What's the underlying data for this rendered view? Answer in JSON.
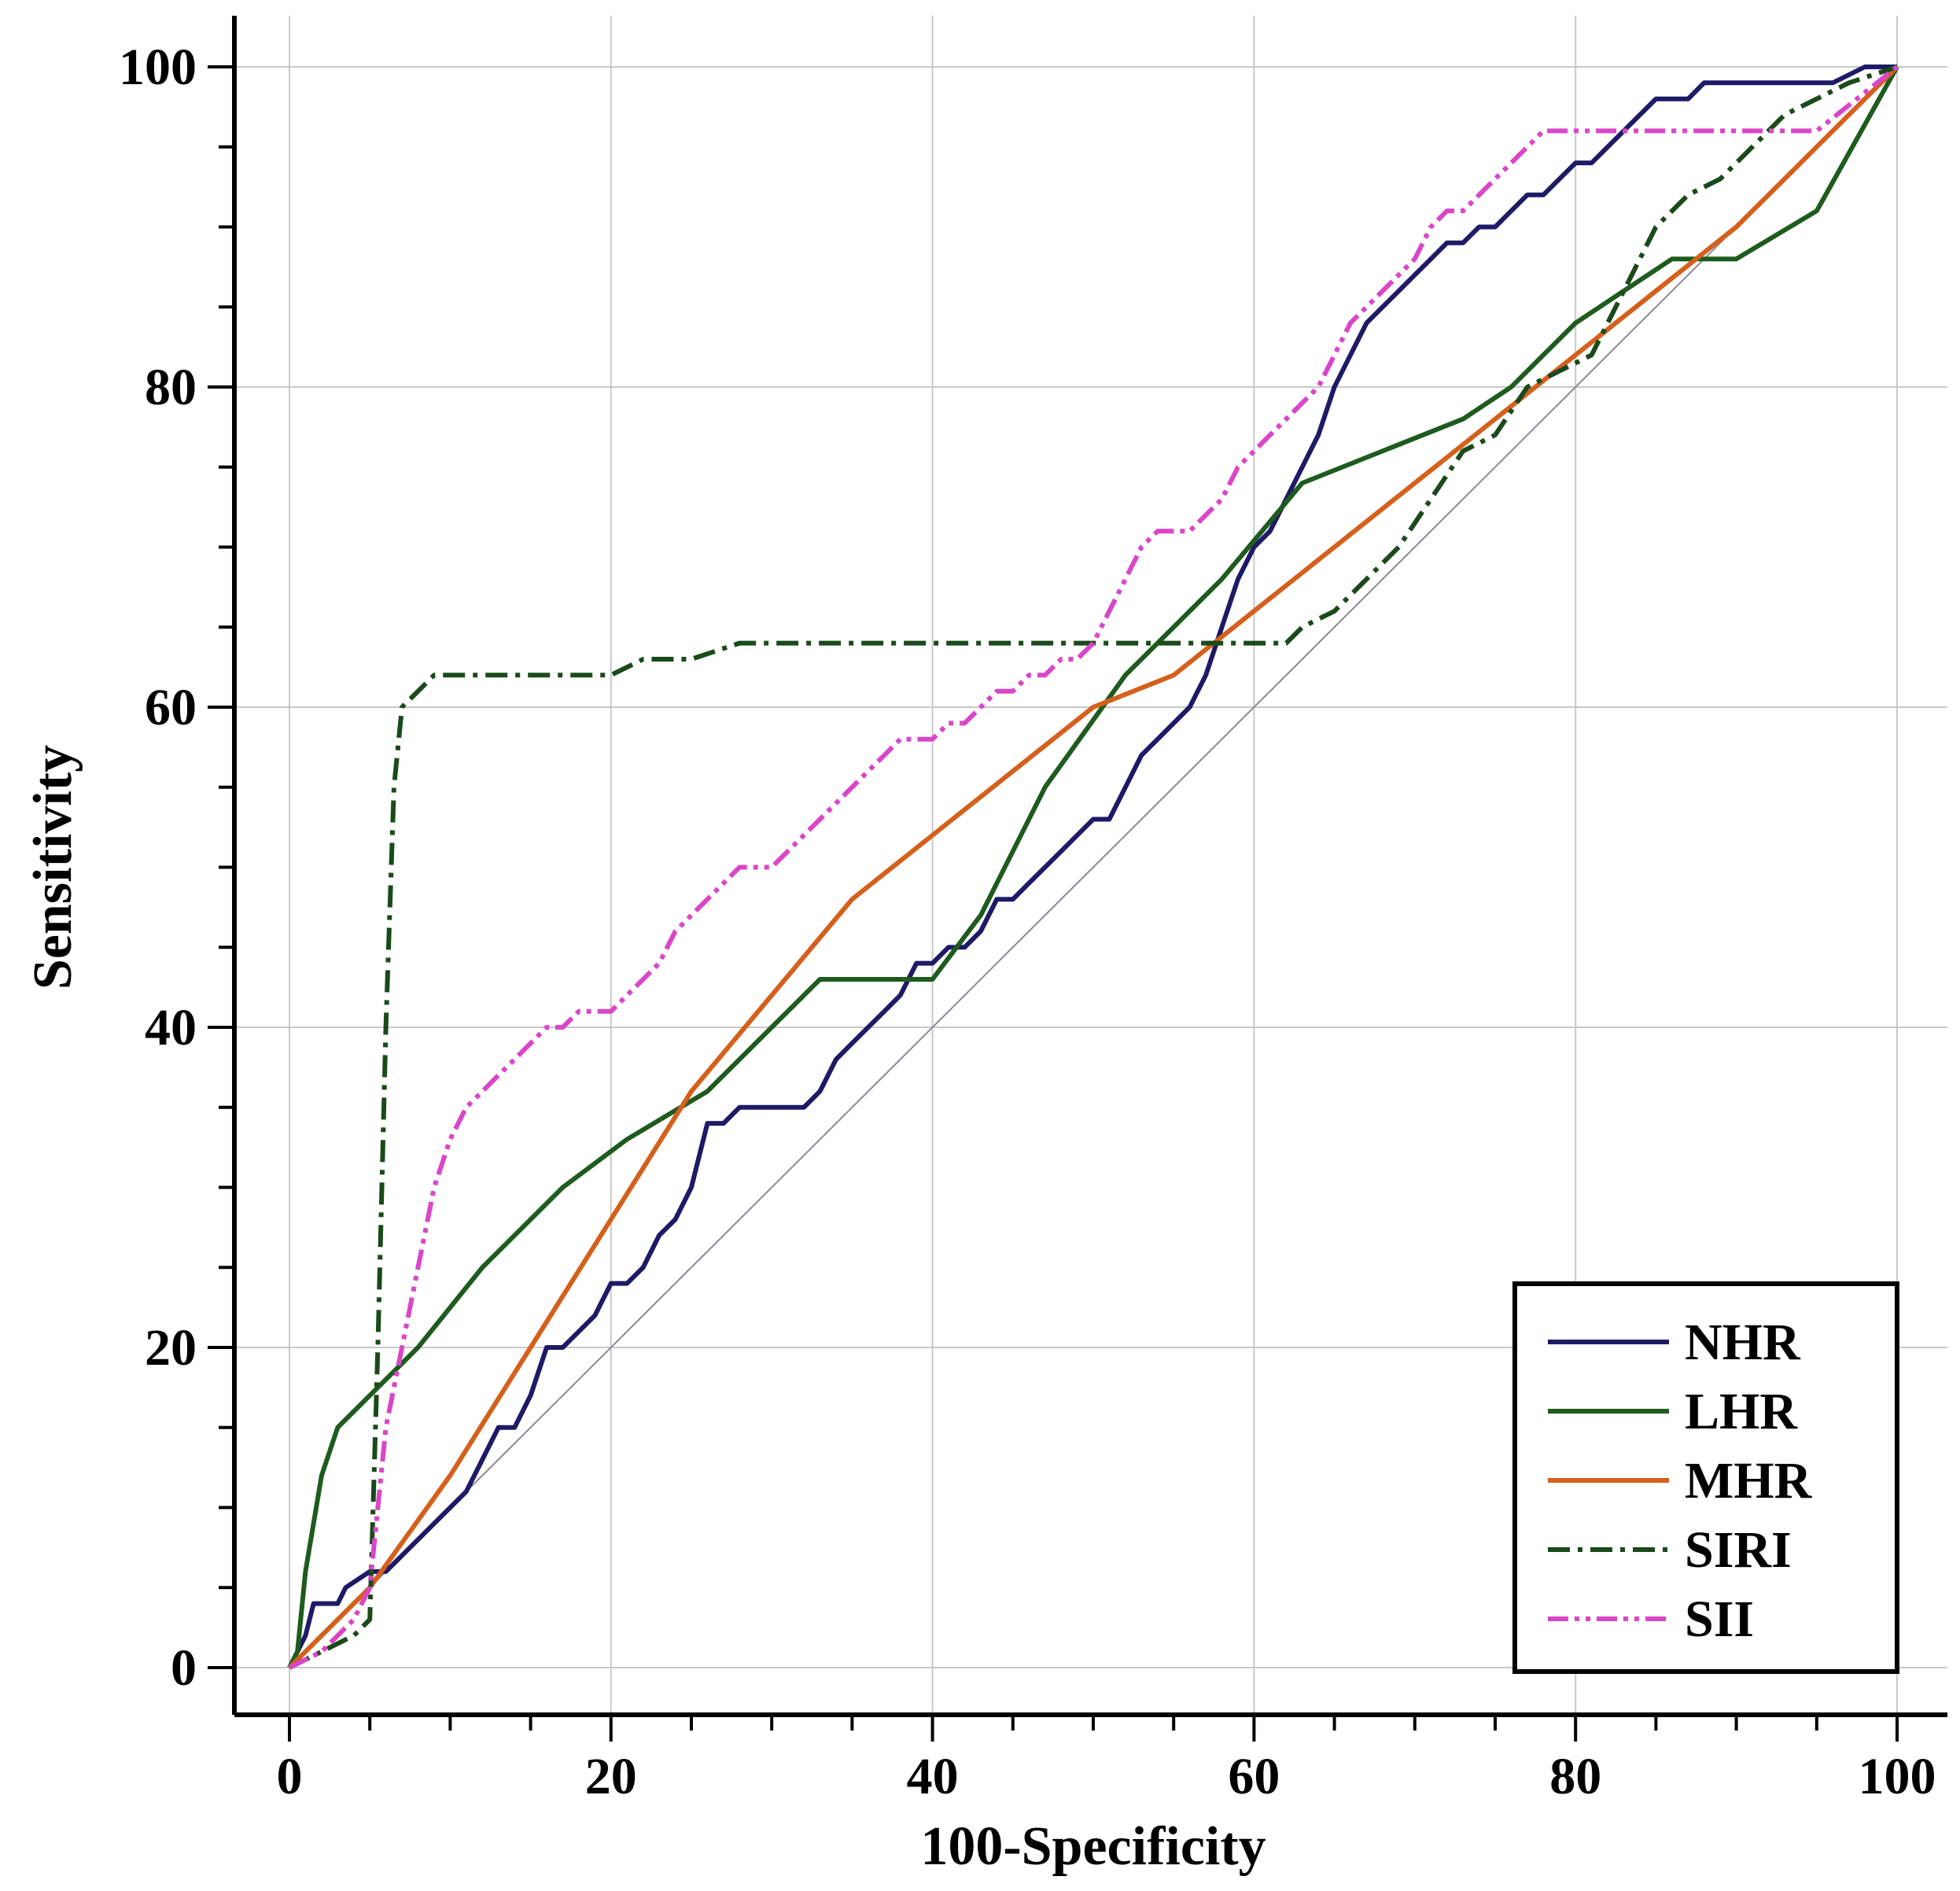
{
  "chart_data": {
    "type": "line",
    "title": "",
    "xlabel": "100-Specificity",
    "ylabel": "Sensitivity",
    "xlim": [
      0,
      100
    ],
    "ylim": [
      0,
      100
    ],
    "x_ticks": [
      "0",
      "20",
      "40",
      "60",
      "80",
      "100"
    ],
    "y_ticks": [
      "0",
      "20",
      "40",
      "60",
      "80",
      "100"
    ],
    "grid": true,
    "legend_position": "bottom-right",
    "reference_line": {
      "x": [
        0,
        100
      ],
      "y": [
        0,
        100
      ],
      "color": "#8a8a9a"
    },
    "series": [
      {
        "name": "NHR",
        "color": "#1f1a66",
        "dash": "solid",
        "points": [
          [
            0,
            0
          ],
          [
            0.5,
            1
          ],
          [
            1,
            2
          ],
          [
            1.5,
            4
          ],
          [
            3,
            4
          ],
          [
            3.5,
            5
          ],
          [
            5,
            6
          ],
          [
            6,
            6
          ],
          [
            7,
            7
          ],
          [
            8,
            8
          ],
          [
            9,
            9
          ],
          [
            10,
            10
          ],
          [
            11,
            11
          ],
          [
            12,
            13
          ],
          [
            13,
            15
          ],
          [
            14,
            15
          ],
          [
            15,
            17
          ],
          [
            16,
            20
          ],
          [
            17,
            20
          ],
          [
            18,
            21
          ],
          [
            19,
            22
          ],
          [
            20,
            24
          ],
          [
            21,
            24
          ],
          [
            22,
            25
          ],
          [
            23,
            27
          ],
          [
            24,
            28
          ],
          [
            25,
            30
          ],
          [
            26,
            34
          ],
          [
            27,
            34
          ],
          [
            28,
            35
          ],
          [
            29,
            35
          ],
          [
            30,
            35
          ],
          [
            31,
            35
          ],
          [
            32,
            35
          ],
          [
            33,
            36
          ],
          [
            34,
            38
          ],
          [
            35,
            39
          ],
          [
            36,
            40
          ],
          [
            37,
            41
          ],
          [
            38,
            42
          ],
          [
            39,
            44
          ],
          [
            40,
            44
          ],
          [
            41,
            45
          ],
          [
            42,
            45
          ],
          [
            43,
            46
          ],
          [
            44,
            48
          ],
          [
            45,
            48
          ],
          [
            46,
            49
          ],
          [
            47,
            50
          ],
          [
            48,
            51
          ],
          [
            49,
            52
          ],
          [
            50,
            53
          ],
          [
            51,
            53
          ],
          [
            52,
            55
          ],
          [
            53,
            57
          ],
          [
            54,
            58
          ],
          [
            55,
            59
          ],
          [
            56,
            60
          ],
          [
            57,
            62
          ],
          [
            58,
            65
          ],
          [
            59,
            68
          ],
          [
            60,
            70
          ],
          [
            61,
            71
          ],
          [
            62,
            73
          ],
          [
            63,
            75
          ],
          [
            64,
            77
          ],
          [
            65,
            80
          ],
          [
            66,
            82
          ],
          [
            67,
            84
          ],
          [
            68,
            85
          ],
          [
            69,
            86
          ],
          [
            70,
            87
          ],
          [
            71,
            88
          ],
          [
            72,
            89
          ],
          [
            73,
            89
          ],
          [
            74,
            90
          ],
          [
            75,
            90
          ],
          [
            76,
            91
          ],
          [
            77,
            92
          ],
          [
            78,
            92
          ],
          [
            79,
            93
          ],
          [
            80,
            94
          ],
          [
            81,
            94
          ],
          [
            82,
            95
          ],
          [
            83,
            96
          ],
          [
            84,
            97
          ],
          [
            85,
            98
          ],
          [
            86,
            98
          ],
          [
            87,
            98
          ],
          [
            88,
            99
          ],
          [
            89,
            99
          ],
          [
            90,
            99
          ],
          [
            92,
            99
          ],
          [
            94,
            99
          ],
          [
            96,
            99
          ],
          [
            98,
            100
          ],
          [
            100,
            100
          ]
        ]
      },
      {
        "name": "LHR",
        "color": "#1e5b1e",
        "dash": "solid",
        "points": [
          [
            0,
            0
          ],
          [
            0.5,
            1
          ],
          [
            1,
            6
          ],
          [
            2,
            12
          ],
          [
            3,
            15
          ],
          [
            5,
            17
          ],
          [
            8,
            20
          ],
          [
            12,
            25
          ],
          [
            17,
            30
          ],
          [
            21,
            33
          ],
          [
            26,
            36
          ],
          [
            29,
            39
          ],
          [
            33,
            43
          ],
          [
            37,
            43
          ],
          [
            40,
            43
          ],
          [
            43,
            47
          ],
          [
            47,
            55
          ],
          [
            52,
            62
          ],
          [
            58,
            68
          ],
          [
            63,
            74
          ],
          [
            68,
            76
          ],
          [
            73,
            78
          ],
          [
            76,
            80
          ],
          [
            78,
            82
          ],
          [
            80,
            84
          ],
          [
            83,
            86
          ],
          [
            86,
            88
          ],
          [
            90,
            88
          ],
          [
            95,
            91
          ],
          [
            100,
            100
          ]
        ]
      },
      {
        "name": "MHR",
        "color": "#d4601c",
        "dash": "solid",
        "points": [
          [
            0,
            0
          ],
          [
            5,
            5
          ],
          [
            10,
            12
          ],
          [
            15,
            20
          ],
          [
            20,
            28
          ],
          [
            25,
            36
          ],
          [
            30,
            42
          ],
          [
            35,
            48
          ],
          [
            40,
            52
          ],
          [
            45,
            56
          ],
          [
            50,
            60
          ],
          [
            55,
            62
          ],
          [
            60,
            66
          ],
          [
            65,
            70
          ],
          [
            70,
            74
          ],
          [
            75,
            78
          ],
          [
            80,
            82
          ],
          [
            85,
            86
          ],
          [
            90,
            90
          ],
          [
            95,
            95
          ],
          [
            100,
            100
          ]
        ]
      },
      {
        "name": "SIRI",
        "color": "#1a4a1a",
        "dash": "dashdot",
        "points": [
          [
            0,
            0
          ],
          [
            2,
            1
          ],
          [
            4,
            2
          ],
          [
            5,
            3
          ],
          [
            5.5,
            20
          ],
          [
            6,
            40
          ],
          [
            6.5,
            55
          ],
          [
            7,
            60
          ],
          [
            8,
            61
          ],
          [
            9,
            62
          ],
          [
            10,
            62
          ],
          [
            15,
            62
          ],
          [
            20,
            62
          ],
          [
            22,
            63
          ],
          [
            25,
            63
          ],
          [
            28,
            64
          ],
          [
            30,
            64
          ],
          [
            35,
            64
          ],
          [
            40,
            64
          ],
          [
            45,
            64
          ],
          [
            50,
            64
          ],
          [
            55,
            64
          ],
          [
            60,
            64
          ],
          [
            62,
            64
          ],
          [
            63,
            65
          ],
          [
            65,
            66
          ],
          [
            67,
            68
          ],
          [
            69,
            70
          ],
          [
            71,
            73
          ],
          [
            73,
            76
          ],
          [
            75,
            77
          ],
          [
            77,
            80
          ],
          [
            79,
            81
          ],
          [
            81,
            82
          ],
          [
            83,
            86
          ],
          [
            85,
            90
          ],
          [
            87,
            92
          ],
          [
            89,
            93
          ],
          [
            91,
            95
          ],
          [
            93,
            97
          ],
          [
            95,
            98
          ],
          [
            97,
            99
          ],
          [
            100,
            100
          ]
        ]
      },
      {
        "name": "SII",
        "color": "#d946c8",
        "dash": "dashdotdot",
        "points": [
          [
            0,
            0
          ],
          [
            2,
            1
          ],
          [
            4,
            3
          ],
          [
            5,
            5
          ],
          [
            5.5,
            10
          ],
          [
            6,
            15
          ],
          [
            7,
            20
          ],
          [
            8,
            25
          ],
          [
            9,
            30
          ],
          [
            10,
            33
          ],
          [
            11,
            35
          ],
          [
            12,
            36
          ],
          [
            13,
            37
          ],
          [
            14,
            38
          ],
          [
            15,
            39
          ],
          [
            16,
            40
          ],
          [
            17,
            40
          ],
          [
            18,
            41
          ],
          [
            19,
            41
          ],
          [
            20,
            41
          ],
          [
            21,
            42
          ],
          [
            22,
            43
          ],
          [
            23,
            44
          ],
          [
            24,
            46
          ],
          [
            25,
            47
          ],
          [
            26,
            48
          ],
          [
            27,
            49
          ],
          [
            28,
            50
          ],
          [
            29,
            50
          ],
          [
            30,
            50
          ],
          [
            31,
            51
          ],
          [
            32,
            52
          ],
          [
            33,
            53
          ],
          [
            34,
            54
          ],
          [
            35,
            55
          ],
          [
            36,
            56
          ],
          [
            37,
            57
          ],
          [
            38,
            58
          ],
          [
            39,
            58
          ],
          [
            40,
            58
          ],
          [
            41,
            59
          ],
          [
            42,
            59
          ],
          [
            43,
            60
          ],
          [
            44,
            61
          ],
          [
            45,
            61
          ],
          [
            46,
            62
          ],
          [
            47,
            62
          ],
          [
            48,
            63
          ],
          [
            49,
            63
          ],
          [
            50,
            64
          ],
          [
            51,
            66
          ],
          [
            52,
            68
          ],
          [
            53,
            70
          ],
          [
            54,
            71
          ],
          [
            55,
            71
          ],
          [
            56,
            71
          ],
          [
            57,
            72
          ],
          [
            58,
            73
          ],
          [
            59,
            75
          ],
          [
            60,
            76
          ],
          [
            61,
            77
          ],
          [
            62,
            78
          ],
          [
            63,
            79
          ],
          [
            64,
            80
          ],
          [
            65,
            82
          ],
          [
            66,
            84
          ],
          [
            67,
            85
          ],
          [
            68,
            86
          ],
          [
            69,
            87
          ],
          [
            70,
            88
          ],
          [
            71,
            90
          ],
          [
            72,
            91
          ],
          [
            73,
            91
          ],
          [
            74,
            92
          ],
          [
            75,
            93
          ],
          [
            76,
            94
          ],
          [
            77,
            95
          ],
          [
            78,
            96
          ],
          [
            79,
            96
          ],
          [
            80,
            96
          ],
          [
            85,
            96
          ],
          [
            90,
            96
          ],
          [
            95,
            96
          ],
          [
            100,
            100
          ]
        ]
      }
    ]
  }
}
